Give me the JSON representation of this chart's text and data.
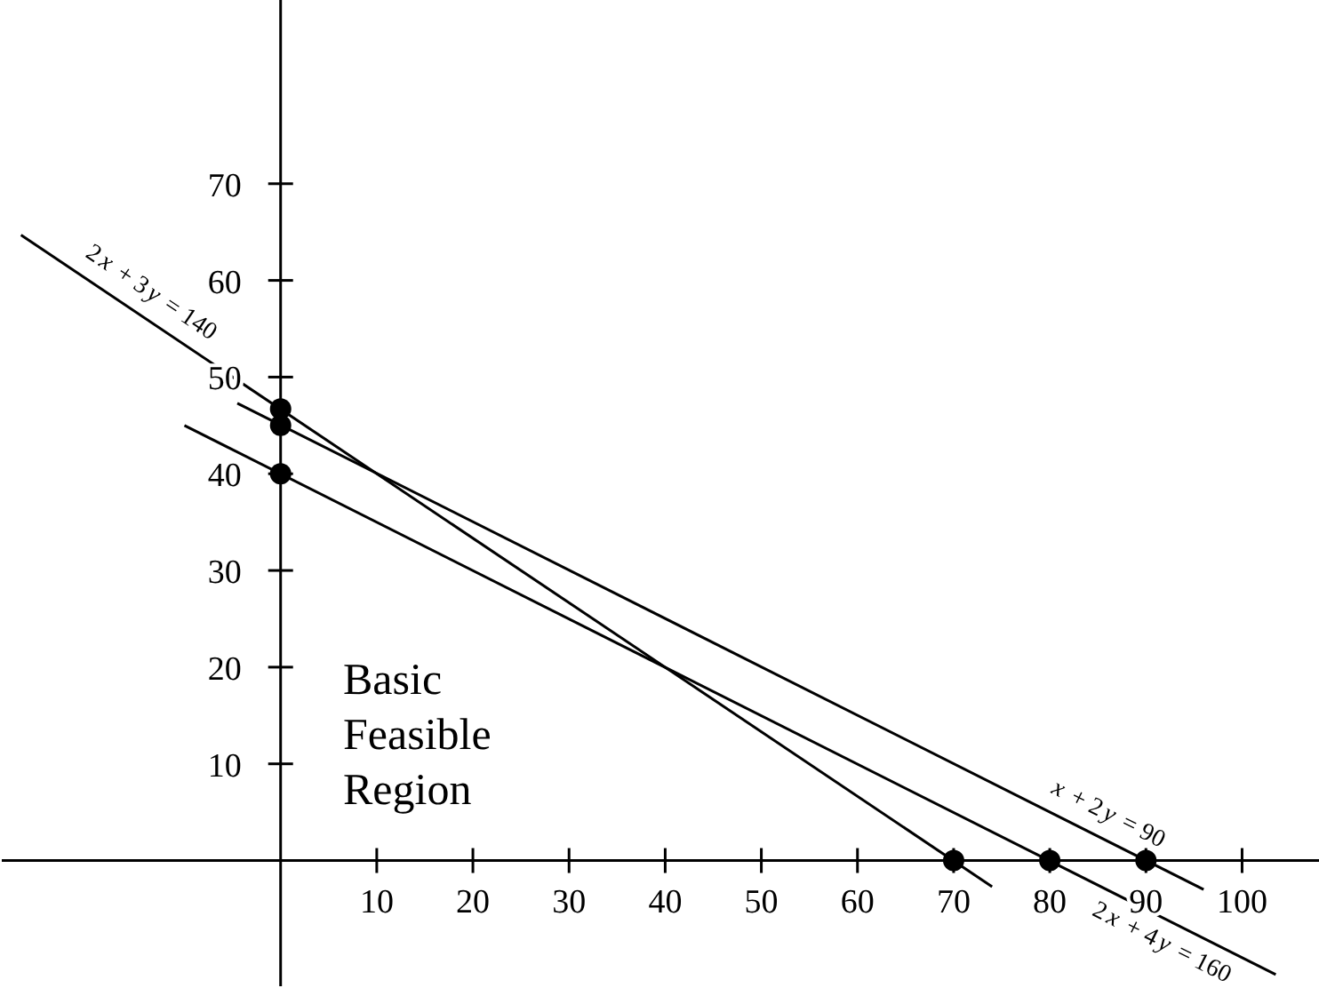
{
  "chart_data": {
    "type": "line",
    "xlim": [
      -29,
      108
    ],
    "ylim": [
      -13,
      89
    ],
    "xticks": [
      10,
      20,
      30,
      40,
      50,
      60,
      70,
      80,
      90,
      100
    ],
    "yticks": [
      10,
      20,
      30,
      40,
      50,
      60,
      70
    ],
    "grid": false,
    "legend": false,
    "series": [
      {
        "name": "2x + 3y = 140",
        "color": "#000000",
        "marker": "none",
        "x": [
          -27,
          74
        ],
        "values": [
          64.7,
          -2.7
        ]
      },
      {
        "name": "x + 2y = 90",
        "color": "#000000",
        "marker": "none",
        "x": [
          -4.5,
          96
        ],
        "values": [
          47.3,
          -3
        ]
      },
      {
        "name": "2x + 4y = 160",
        "color": "#000000",
        "marker": "none",
        "x": [
          -10,
          103.5
        ],
        "values": [
          45,
          -11.8
        ]
      },
      {
        "type": "scatter",
        "color": "#000000",
        "marker": "circle",
        "x": [
          0,
          0,
          0,
          70,
          80,
          90
        ],
        "values": [
          46.7,
          45,
          40,
          0,
          0,
          0
        ]
      }
    ],
    "annotations": [
      "Basic Feasible Region"
    ]
  }
}
